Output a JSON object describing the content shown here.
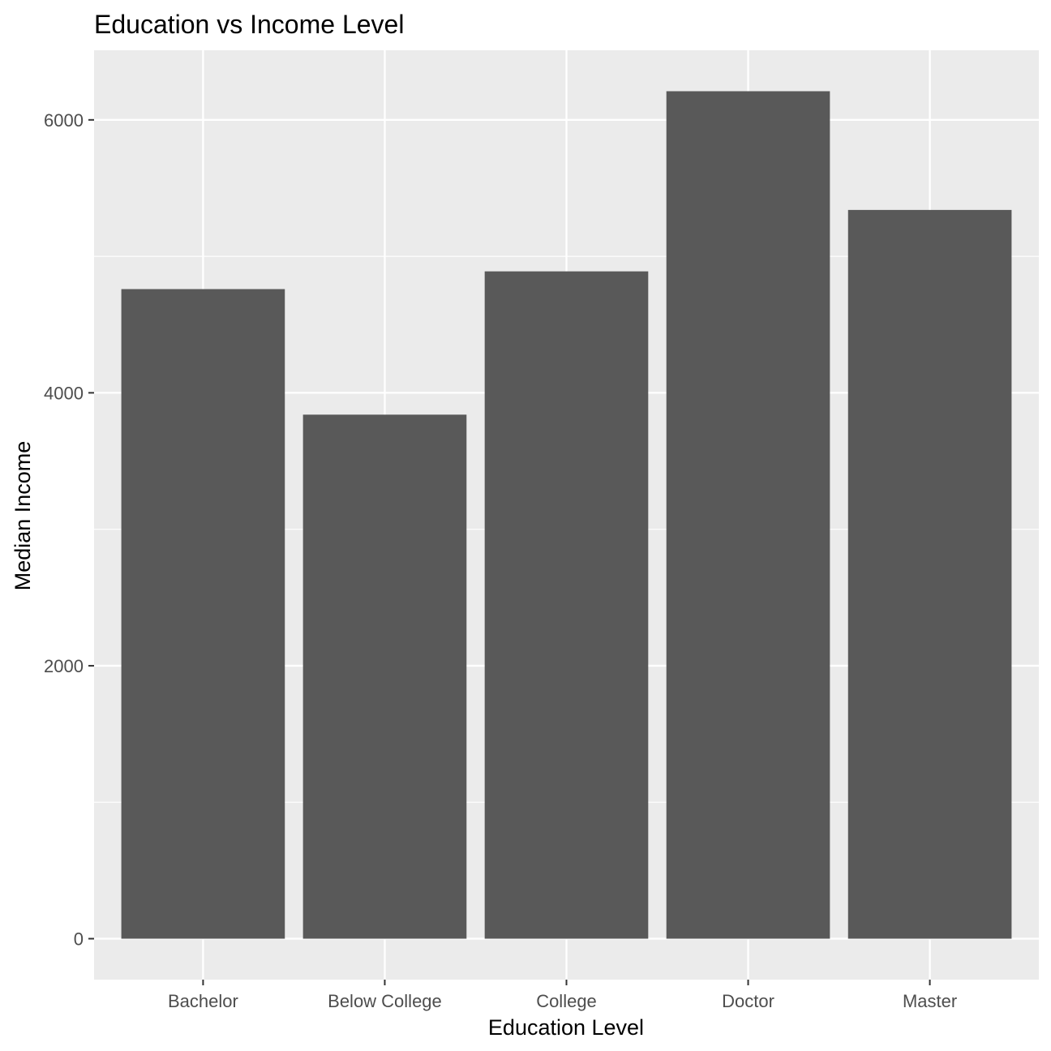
{
  "chart_data": {
    "type": "bar",
    "title": "Education vs Income Level",
    "xlabel": "Education Level",
    "ylabel": "Median Income",
    "categories": [
      "Bachelor",
      "Below College",
      "College",
      "Doctor",
      "Master"
    ],
    "values": [
      4760,
      3840,
      4890,
      6210,
      5340
    ],
    "ylim": [
      -300,
      6510
    ],
    "yticks": [
      0,
      2000,
      4000,
      6000
    ],
    "ytick_labels": [
      "0",
      "2000",
      "4000",
      "6000"
    ],
    "grid": true,
    "legend": "none",
    "colors": {
      "bar": "#595959",
      "panel": "#ebebeb",
      "grid": "#ffffff",
      "tick_text": "#4d4d4d",
      "tick_line": "#333333"
    }
  }
}
